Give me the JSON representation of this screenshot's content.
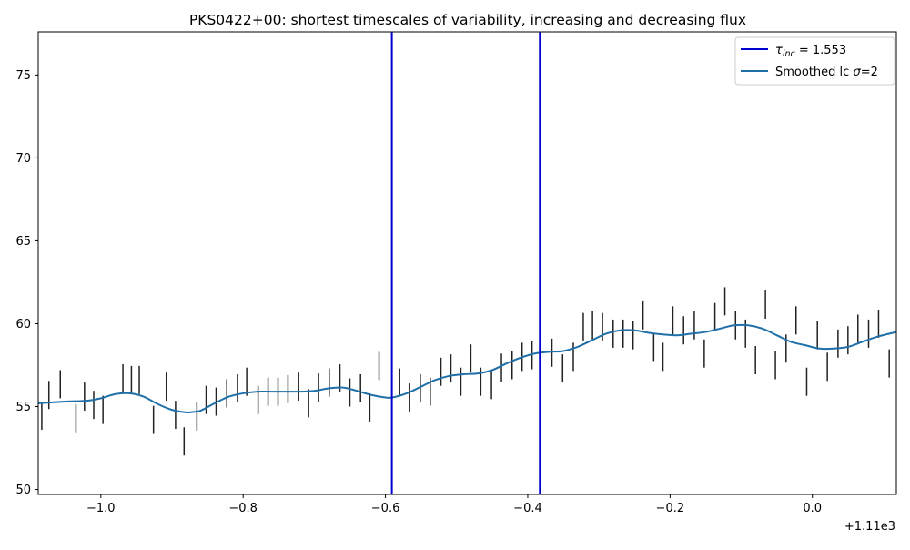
{
  "chart_data": {
    "type": "line",
    "title": "PKS0422+00: shortest timescales of variability, increasing and decreasing flux",
    "xlabel": "",
    "ylabel": "",
    "x_offset_text": "+1.11e3",
    "xlim": [
      -1.088,
      0.118
    ],
    "ylim": [
      49.7,
      77.6
    ],
    "x_ticks": [
      -1.0,
      -0.8,
      -0.6,
      -0.4,
      -0.2,
      0.0
    ],
    "x_tick_labels": [
      "−1.0",
      "−0.8",
      "−0.6",
      "−0.4",
      "−0.2",
      "0.0"
    ],
    "y_ticks": [
      50,
      55,
      60,
      65,
      70,
      75
    ],
    "y_tick_labels": [
      "50",
      "55",
      "60",
      "65",
      "70",
      "75"
    ],
    "grid": false,
    "legend_position": "top-right",
    "legend": [
      {
        "label": "τ_inc = 1.553",
        "color": "#0000cc"
      },
      {
        "label": "Smoothed lc σ=2",
        "color": "#1f6fa8"
      }
    ],
    "vertical_lines": {
      "name": "τ_inc = 1.553",
      "color": "#0000cc",
      "x": [
        -0.591,
        -0.383
      ]
    },
    "smoothed": {
      "name": "Smoothed lc σ=2",
      "color": "#1f6fa8",
      "x": [
        -1.088,
        -1.05,
        -1.02,
        -1.0,
        -0.98,
        -0.96,
        -0.94,
        -0.92,
        -0.9,
        -0.88,
        -0.87,
        -0.86,
        -0.84,
        -0.82,
        -0.8,
        -0.78,
        -0.76,
        -0.74,
        -0.72,
        -0.7,
        -0.68,
        -0.66,
        -0.64,
        -0.62,
        -0.6,
        -0.59,
        -0.57,
        -0.55,
        -0.53,
        -0.51,
        -0.49,
        -0.47,
        -0.45,
        -0.43,
        -0.41,
        -0.39,
        -0.37,
        -0.35,
        -0.33,
        -0.31,
        -0.29,
        -0.27,
        -0.25,
        -0.23,
        -0.21,
        -0.19,
        -0.17,
        -0.15,
        -0.13,
        -0.11,
        -0.09,
        -0.07,
        -0.05,
        -0.03,
        -0.01,
        0.01,
        0.03,
        0.05,
        0.07,
        0.09,
        0.118
      ],
      "y": [
        55.2,
        55.3,
        55.35,
        55.5,
        55.75,
        55.8,
        55.6,
        55.15,
        54.8,
        54.65,
        54.68,
        54.75,
        55.2,
        55.6,
        55.8,
        55.9,
        55.9,
        55.9,
        55.9,
        55.95,
        56.1,
        56.15,
        55.95,
        55.7,
        55.55,
        55.55,
        55.8,
        56.2,
        56.6,
        56.85,
        56.95,
        57.0,
        57.2,
        57.6,
        57.95,
        58.2,
        58.3,
        58.35,
        58.6,
        59.0,
        59.4,
        59.6,
        59.6,
        59.45,
        59.35,
        59.3,
        59.4,
        59.5,
        59.7,
        59.9,
        59.9,
        59.7,
        59.3,
        58.9,
        58.7,
        58.5,
        58.5,
        58.6,
        58.9,
        59.2,
        59.5
      ]
    },
    "errorbars": {
      "color": "#222222",
      "x": [
        -1.083,
        -1.073,
        -1.057,
        -1.035,
        -1.023,
        -1.01,
        -0.997,
        -0.969,
        -0.957,
        -0.946,
        -0.926,
        -0.908,
        -0.895,
        -0.883,
        -0.865,
        -0.852,
        -0.838,
        -0.823,
        -0.808,
        -0.795,
        -0.779,
        -0.765,
        -0.751,
        -0.737,
        -0.722,
        -0.708,
        -0.694,
        -0.679,
        -0.664,
        -0.65,
        -0.635,
        -0.622,
        -0.609,
        -0.58,
        -0.566,
        -0.551,
        -0.537,
        -0.522,
        -0.508,
        -0.494,
        -0.48,
        -0.466,
        -0.451,
        -0.437,
        -0.422,
        -0.408,
        -0.394,
        -0.366,
        -0.351,
        -0.336,
        -0.322,
        -0.309,
        -0.295,
        -0.28,
        -0.266,
        -0.252,
        -0.238,
        -0.223,
        -0.21,
        -0.196,
        -0.181,
        -0.166,
        -0.152,
        -0.137,
        -0.123,
        -0.108,
        -0.094,
        -0.08,
        -0.066,
        -0.052,
        -0.037,
        -0.023,
        -0.008,
        0.007,
        0.021,
        0.036,
        0.05,
        0.064,
        0.079,
        0.093,
        0.108
      ],
      "y": [
        54.45,
        55.7,
        56.35,
        54.3,
        55.6,
        55.1,
        54.8,
        56.7,
        56.6,
        56.6,
        54.2,
        56.2,
        54.5,
        52.9,
        54.4,
        55.4,
        55.3,
        55.8,
        56.1,
        56.5,
        55.4,
        55.9,
        55.9,
        56.05,
        56.2,
        55.2,
        56.15,
        56.45,
        56.7,
        55.85,
        56.1,
        54.95,
        57.45,
        56.45,
        55.55,
        56.1,
        55.9,
        57.1,
        57.3,
        56.5,
        57.9,
        56.5,
        56.3,
        57.35,
        57.5,
        58.0,
        58.1,
        58.25,
        57.3,
        58.0,
        59.8,
        59.9,
        59.8,
        59.4,
        59.4,
        59.3,
        60.5,
        58.6,
        58.0,
        60.2,
        59.6,
        59.9,
        58.2,
        60.4,
        61.35,
        59.9,
        59.4,
        57.8,
        61.15,
        57.5,
        58.5,
        60.2,
        56.5,
        59.3,
        57.4,
        58.8,
        59.0,
        59.7,
        59.4,
        60.0,
        57.6
      ]
    },
    "errorbar_halfwidth": 0.85
  }
}
